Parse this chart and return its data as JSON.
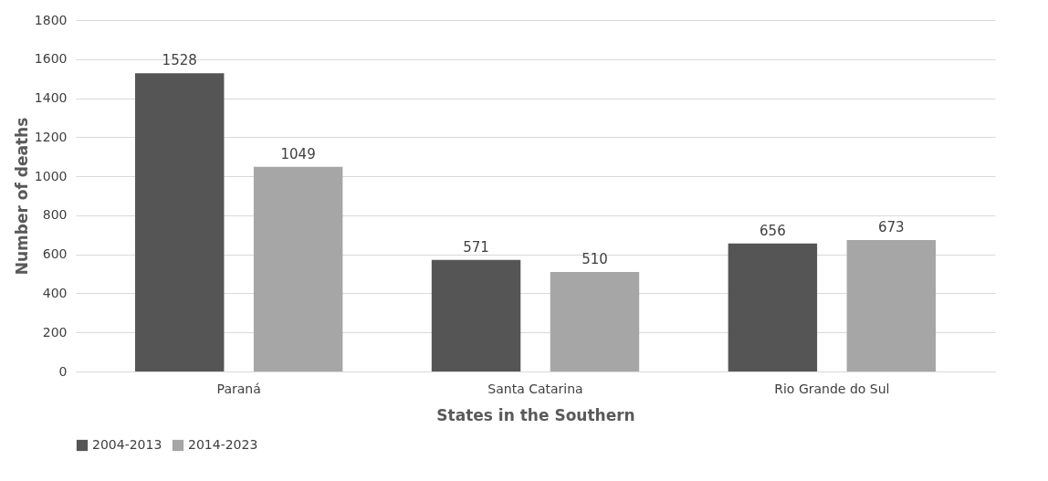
{
  "chart_data": {
    "type": "bar",
    "xlabel": "States in the Southern",
    "ylabel": "Number of deaths",
    "categories": [
      "Paraná",
      "Santa Catarina",
      "Rio Grande do Sul"
    ],
    "series": [
      {
        "name": "2004-2013",
        "color": "#555555",
        "values": [
          1528,
          571,
          656
        ]
      },
      {
        "name": "2014-2023",
        "color": "#a6a6a6",
        "values": [
          1049,
          510,
          673
        ]
      }
    ],
    "ylim": [
      0,
      1800
    ],
    "yticks": [
      0,
      200,
      400,
      600,
      800,
      1000,
      1200,
      1400,
      1600,
      1800
    ],
    "grid": "y",
    "legend": "bottom",
    "data_labels": true
  }
}
